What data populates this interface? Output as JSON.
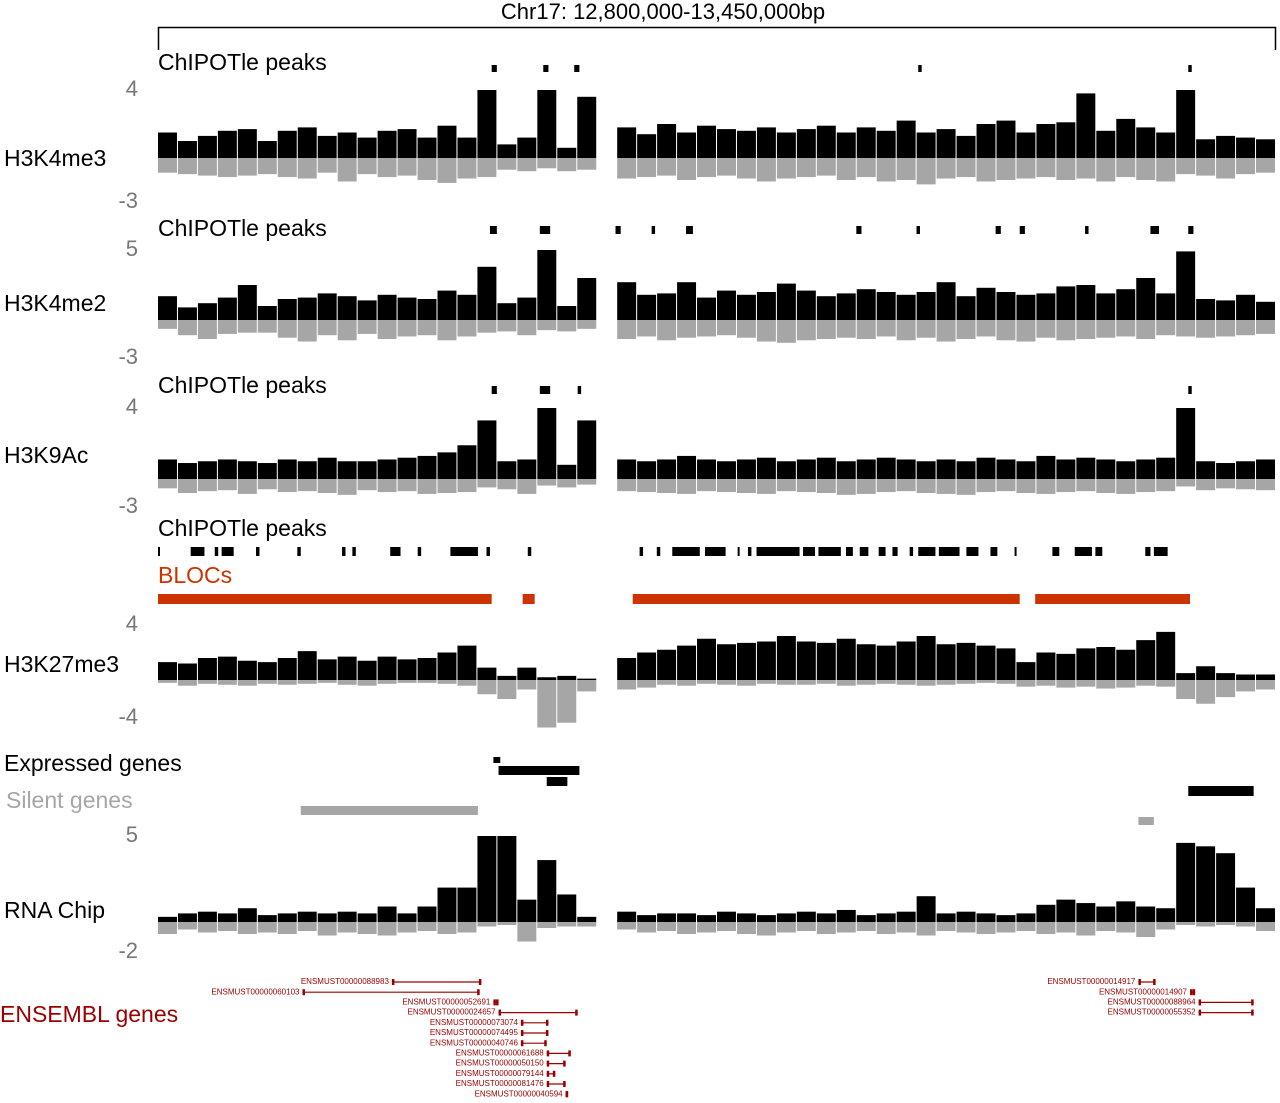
{
  "chart_data": {
    "type": "genome-tracks",
    "title": "Chr17: 12,800,000-13,450,000bp",
    "xlim": [
      12800000,
      13450000
    ],
    "tracks": [
      {
        "name": "H3K4me3",
        "peaks_label": "ChIPOTle peaks",
        "peaks": [
          [
            12994000,
            12997000
          ],
          [
            13024000,
            13027000
          ],
          [
            13042000,
            13045000
          ],
          [
            13242000,
            13244000
          ],
          [
            13399000,
            13401000
          ]
        ],
        "ylim": [
          -3,
          4
        ],
        "yticks": [
          4,
          -3
        ],
        "color_pos": "#000000",
        "color_neg": "#a6a6a6",
        "pos": [
          1.5,
          1.0,
          1.3,
          1.6,
          1.7,
          1.0,
          1.6,
          1.8,
          1.3,
          1.5,
          1.2,
          1.6,
          1.7,
          1.2,
          1.9,
          1.2,
          4.0,
          0.8,
          1.2,
          4.0,
          0.6,
          3.6,
          null,
          1.8,
          1.4,
          2.0,
          1.5,
          1.9,
          1.7,
          1.6,
          1.8,
          1.5,
          1.7,
          1.9,
          1.5,
          1.8,
          1.6,
          2.2,
          1.5,
          1.7,
          1.3,
          2.0,
          2.2,
          1.5,
          2.0,
          2.1,
          3.8,
          1.6,
          2.3,
          1.8,
          1.5,
          4.0,
          1.1,
          1.3,
          1.2,
          1.1
        ],
        "neg": [
          -1.0,
          -1.1,
          -1.2,
          -1.3,
          -1.2,
          -1.1,
          -1.3,
          -1.4,
          -1.0,
          -1.6,
          -1.1,
          -1.3,
          -1.2,
          -1.5,
          -1.7,
          -1.4,
          -1.3,
          -0.8,
          -0.9,
          -0.7,
          -0.9,
          -0.8,
          null,
          -1.4,
          -1.3,
          -1.2,
          -1.5,
          -1.3,
          -1.2,
          -1.4,
          -1.6,
          -1.4,
          -1.3,
          -1.2,
          -1.5,
          -1.3,
          -1.6,
          -1.5,
          -1.8,
          -1.4,
          -1.3,
          -1.6,
          -1.5,
          -1.4,
          -1.3,
          -1.5,
          -1.4,
          -1.6,
          -1.3,
          -1.5,
          -1.6,
          -1.1,
          -1.2,
          -1.4,
          -1.1,
          -1.0
        ]
      },
      {
        "name": "H3K4me2",
        "peaks_label": "ChIPOTle peaks",
        "peaks": [
          [
            12993000,
            12997000
          ],
          [
            13022000,
            13028000
          ],
          [
            13066000,
            13069000
          ],
          [
            13087000,
            13089000
          ],
          [
            13107000,
            13111000
          ],
          [
            13206000,
            13209000
          ],
          [
            13241000,
            13243000
          ],
          [
            13287000,
            13290000
          ],
          [
            13301000,
            13304000
          ],
          [
            13339000,
            13341000
          ],
          [
            13377000,
            13382000
          ],
          [
            13399000,
            13402000
          ]
        ],
        "ylim": [
          -3,
          5
        ],
        "yticks": [
          5,
          -3
        ],
        "color_pos": "#000000",
        "color_neg": "#a6a6a6",
        "pos": [
          1.7,
          0.9,
          1.2,
          1.6,
          2.5,
          1.0,
          1.5,
          1.6,
          1.9,
          1.7,
          1.4,
          1.8,
          1.6,
          1.5,
          2.1,
          1.8,
          3.8,
          1.2,
          1.6,
          5.0,
          1.0,
          3.0,
          null,
          2.7,
          1.8,
          1.9,
          2.7,
          1.6,
          2.1,
          1.8,
          2.0,
          2.6,
          2.1,
          1.7,
          1.9,
          2.2,
          2.0,
          1.8,
          2.0,
          2.7,
          1.7,
          2.3,
          2.0,
          1.8,
          1.9,
          2.4,
          2.5,
          1.9,
          2.2,
          3.0,
          1.9,
          4.9,
          1.5,
          1.4,
          1.8,
          1.3
        ],
        "neg": [
          -0.7,
          -1.2,
          -1.5,
          -1.1,
          -1.0,
          -1.0,
          -1.4,
          -1.7,
          -1.2,
          -1.6,
          -1.1,
          -1.5,
          -1.3,
          -1.2,
          -1.6,
          -1.3,
          -1.0,
          -0.9,
          -1.2,
          -0.8,
          -0.9,
          -0.7,
          null,
          -1.5,
          -1.3,
          -1.6,
          -1.4,
          -1.3,
          -1.2,
          -1.4,
          -1.7,
          -1.8,
          -1.6,
          -1.5,
          -1.4,
          -1.5,
          -1.3,
          -1.6,
          -1.4,
          -1.7,
          -1.5,
          -1.3,
          -1.6,
          -1.7,
          -1.4,
          -1.6,
          -1.5,
          -1.4,
          -1.3,
          -1.5,
          -1.2,
          -1.3,
          -1.4,
          -1.3,
          -1.2,
          -1.1
        ]
      },
      {
        "name": "H3K9Ac",
        "peaks_label": "ChIPOTle peaks",
        "peaks": [
          [
            12994000,
            12997000
          ],
          [
            13022000,
            13028000
          ],
          [
            13044000,
            13046000
          ],
          [
            13399000,
            13401000
          ]
        ],
        "ylim": [
          -3,
          4
        ],
        "yticks": [
          4,
          -3
        ],
        "color_pos": "#000000",
        "color_neg": "#a6a6a6",
        "pos": [
          1.1,
          0.9,
          1.0,
          1.1,
          1.0,
          0.9,
          1.1,
          1.0,
          1.2,
          1.0,
          1.0,
          1.1,
          1.2,
          1.3,
          1.5,
          1.9,
          3.3,
          1.0,
          1.1,
          4.0,
          0.8,
          3.3,
          null,
          1.1,
          1.0,
          1.1,
          1.3,
          1.1,
          1.0,
          1.1,
          1.2,
          1.0,
          1.1,
          1.2,
          1.0,
          1.1,
          1.2,
          1.1,
          1.0,
          1.1,
          1.0,
          1.2,
          1.1,
          1.0,
          1.3,
          1.1,
          1.2,
          1.1,
          1.0,
          1.1,
          1.2,
          4.0,
          1.0,
          0.9,
          1.0,
          1.1
        ],
        "neg": [
          -1.0,
          -1.5,
          -1.3,
          -1.2,
          -1.6,
          -1.1,
          -1.4,
          -1.3,
          -1.5,
          -1.7,
          -1.2,
          -1.4,
          -1.3,
          -1.6,
          -1.5,
          -1.4,
          -0.9,
          -1.1,
          -1.6,
          -0.7,
          -0.9,
          -0.6,
          null,
          -1.3,
          -1.4,
          -1.5,
          -1.6,
          -1.3,
          -1.4,
          -1.5,
          -1.6,
          -1.3,
          -1.4,
          -1.5,
          -1.7,
          -1.6,
          -1.4,
          -1.3,
          -1.5,
          -1.6,
          -1.7,
          -1.4,
          -1.3,
          -1.5,
          -1.6,
          -1.4,
          -1.3,
          -1.5,
          -1.6,
          -1.4,
          -1.3,
          -0.8,
          -1.2,
          -1.0,
          -1.1,
          -1.2
        ]
      },
      {
        "name": "H3K27me3",
        "peaks_label": "ChIPOTle peaks",
        "peaks": [
          [
            12800000,
            12801000
          ],
          [
            12819000,
            12827000
          ],
          [
            12833000,
            12835000
          ],
          [
            12837000,
            12844000
          ],
          [
            12857000,
            12859000
          ],
          [
            12881000,
            12883000
          ],
          [
            12907000,
            12909000
          ],
          [
            12913000,
            12915000
          ],
          [
            12935000,
            12941000
          ],
          [
            12951000,
            12953000
          ],
          [
            12970000,
            12986000
          ],
          [
            12991000,
            12993000
          ],
          [
            13015000,
            13017000
          ],
          [
            13080000,
            13082000
          ],
          [
            13090000,
            13092000
          ],
          [
            13099000,
            13115000
          ],
          [
            13118000,
            13130000
          ],
          [
            13137000,
            13138000
          ],
          [
            13143000,
            13145000
          ],
          [
            13148000,
            13173000
          ],
          [
            13175000,
            13182000
          ],
          [
            13184000,
            13197000
          ],
          [
            13200000,
            13204000
          ],
          [
            13208000,
            13213000
          ],
          [
            13219000,
            13223000
          ],
          [
            13227000,
            13230000
          ],
          [
            13237000,
            13239000
          ],
          [
            13242000,
            13252000
          ],
          [
            13254000,
            13266000
          ],
          [
            13270000,
            13277000
          ],
          [
            13284000,
            13288000
          ],
          [
            13298000,
            13299000
          ],
          [
            13320000,
            13324000
          ],
          [
            13333000,
            13343000
          ],
          [
            13345000,
            13349000
          ],
          [
            13374000,
            13377000
          ],
          [
            13379000,
            13387000
          ]
        ],
        "ylim": [
          -4,
          4
        ],
        "yticks": [
          4,
          -4
        ],
        "color_pos": "#000000",
        "color_neg": "#a6a6a6",
        "pos": [
          1.3,
          1.2,
          1.6,
          1.7,
          1.4,
          1.3,
          1.6,
          2.1,
          1.5,
          1.7,
          1.4,
          1.7,
          1.5,
          1.6,
          2.0,
          2.5,
          0.9,
          0.3,
          0.9,
          0.2,
          0.3,
          0.1,
          null,
          1.6,
          2.0,
          2.2,
          2.5,
          3.0,
          2.6,
          2.7,
          2.8,
          3.2,
          2.8,
          2.7,
          3.0,
          2.6,
          2.5,
          2.8,
          3.2,
          2.6,
          2.7,
          2.5,
          2.3,
          1.3,
          2.0,
          1.9,
          2.3,
          2.4,
          2.2,
          2.9,
          3.5,
          0.5,
          1.0,
          0.5,
          0.4,
          0.4
        ],
        "neg": [
          -0.3,
          -0.6,
          -0.4,
          -0.5,
          -0.6,
          -0.4,
          -0.5,
          -0.4,
          -0.3,
          -0.5,
          -0.6,
          -0.4,
          -0.3,
          -0.3,
          -0.4,
          -0.6,
          -1.5,
          -2.0,
          -1.0,
          -5.0,
          -4.5,
          -1.2,
          null,
          -1.0,
          -0.8,
          -0.5,
          -0.6,
          -0.4,
          -0.5,
          -0.6,
          -0.4,
          -0.5,
          -0.5,
          -0.4,
          -0.6,
          -0.5,
          -0.4,
          -0.5,
          -0.6,
          -0.5,
          -0.4,
          -0.3,
          -0.4,
          -0.7,
          -0.6,
          -0.8,
          -0.7,
          -0.9,
          -0.8,
          -0.6,
          -0.7,
          -2.0,
          -2.5,
          -1.8,
          -1.2,
          -1.0
        ]
      },
      {
        "name": "RNA Chip",
        "ylim": [
          -2,
          5
        ],
        "yticks": [
          5,
          -2
        ],
        "color_pos": "#000000",
        "color_neg": "#a6a6a6",
        "pos": [
          0.3,
          0.5,
          0.6,
          0.5,
          0.8,
          0.4,
          0.5,
          0.6,
          0.5,
          0.6,
          0.5,
          0.9,
          0.5,
          0.9,
          2.0,
          2.0,
          5.0,
          5.0,
          1.3,
          3.6,
          1.6,
          0.3,
          null,
          0.6,
          0.4,
          0.5,
          0.5,
          0.4,
          0.6,
          0.5,
          0.4,
          0.5,
          0.6,
          0.5,
          0.7,
          0.4,
          0.5,
          0.6,
          1.5,
          0.5,
          0.6,
          0.5,
          0.4,
          0.5,
          1.0,
          1.3,
          1.1,
          0.9,
          1.2,
          0.9,
          0.8,
          4.6,
          4.4,
          4.0,
          2.0,
          0.8
        ],
        "neg": [
          -0.8,
          -0.5,
          -0.7,
          -0.6,
          -0.8,
          -0.7,
          -0.8,
          -0.6,
          -0.9,
          -0.7,
          -0.8,
          -0.9,
          -0.7,
          -0.6,
          -0.8,
          -0.7,
          -0.3,
          -0.2,
          -1.3,
          -0.4,
          -0.3,
          -0.3,
          null,
          -0.5,
          -0.7,
          -0.6,
          -0.8,
          -0.7,
          -0.6,
          -0.8,
          -0.9,
          -0.7,
          -0.6,
          -0.8,
          -0.7,
          -0.6,
          -0.8,
          -0.7,
          -0.9,
          -0.6,
          -0.7,
          -0.8,
          -0.7,
          -0.6,
          -0.8,
          -0.7,
          -0.9,
          -0.6,
          -0.7,
          -1.0,
          -0.5,
          -0.2,
          -0.3,
          -0.2,
          -0.3,
          -0.6
        ]
      }
    ],
    "blocs": {
      "label": "BLOCs",
      "color": "#cc3300",
      "regions": [
        [
          12800000,
          12994000
        ],
        [
          13012000,
          13019000
        ],
        [
          13076000,
          13301000
        ],
        [
          13310000,
          13400000
        ]
      ]
    },
    "expressed_genes": {
      "label": "Expressed genes",
      "color": "#000000",
      "regions": [
        [
          12995000,
          12999000
        ],
        [
          12998000,
          13045000
        ],
        [
          13026000,
          13038000
        ],
        [
          13399000,
          13437000
        ]
      ]
    },
    "silent_genes": {
      "label": "Silent genes",
      "color": "#a6a6a6",
      "regions": [
        [
          12883000,
          12986000
        ],
        [
          13370000,
          13379000
        ]
      ]
    },
    "ensembl_genes": {
      "label": "ENSEMBL genes",
      "color": "#990000",
      "genes": [
        {
          "name": "ENSMUST00000088983",
          "start": 12936000,
          "end": 12988000
        },
        {
          "name": "ENSMUST00000060103",
          "start": 12884000,
          "end": 12987000
        },
        {
          "name": "ENSMUST00000052691",
          "start": 12995000,
          "end": 12998000
        },
        {
          "name": "ENSMUST00000024657",
          "start": 12998000,
          "end": 13044000
        },
        {
          "name": "ENSMUST00000073074",
          "start": 13011000,
          "end": 13027000
        },
        {
          "name": "ENSMUST00000074495",
          "start": 13011000,
          "end": 13027000
        },
        {
          "name": "ENSMUST00000040746",
          "start": 13011000,
          "end": 13026000
        },
        {
          "name": "ENSMUST00000061688",
          "start": 13026000,
          "end": 13040000
        },
        {
          "name": "ENSMUST00000050150",
          "start": 13026000,
          "end": 13037000
        },
        {
          "name": "ENSMUST00000079144",
          "start": 13026000,
          "end": 13031000
        },
        {
          "name": "ENSMUST00000081476",
          "start": 13026000,
          "end": 13037000
        },
        {
          "name": "ENSMUST00000040594",
          "start": 13037000,
          "end": 13038000
        },
        {
          "name": "ENSMUST00000014917",
          "start": 13370000,
          "end": 13380000
        },
        {
          "name": "ENSMUST00000014907",
          "start": 13400000,
          "end": 13403000
        },
        {
          "name": "ENSMUST00000088964",
          "start": 13405000,
          "end": 13437000
        },
        {
          "name": "ENSMUST00000055352",
          "start": 13405000,
          "end": 13437000
        }
      ]
    }
  }
}
